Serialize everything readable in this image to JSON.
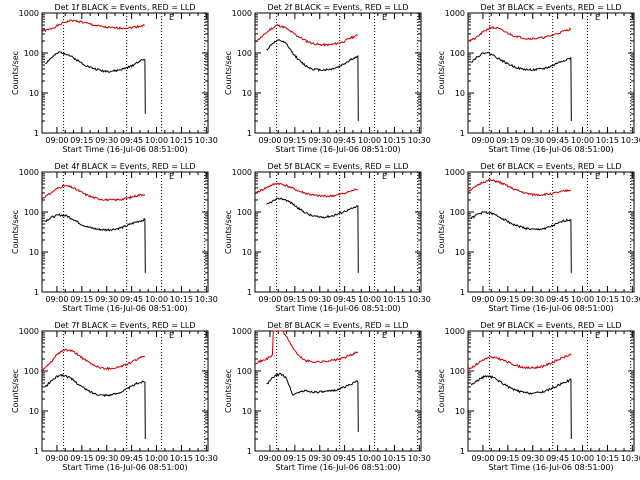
{
  "chart_data": [
    {
      "type": "line",
      "title": "Det 1f BLACK = Events, RED = LLD",
      "xlabel": "Start Time (16-Jul-06 08:51:00)",
      "ylabel": "Counts/sec",
      "xticks": [
        "09:00",
        "09:15",
        "09:30",
        "09:45",
        "10:00",
        "10:15",
        "10:30"
      ],
      "yticks": [
        "1",
        "10",
        "100",
        "1000"
      ],
      "ylim": [
        1,
        1000
      ],
      "yscale": "log",
      "marker": "E",
      "series": [
        {
          "name": "LLD",
          "color": "#cc0000",
          "t0": 0,
          "t1": 62,
          "level": [
            350,
            390,
            470,
            580,
            650,
            620,
            560,
            500,
            460,
            430,
            420,
            420,
            430,
            460,
            500
          ]
        },
        {
          "name": "Events",
          "color": "#000000",
          "t0": 2,
          "t1": 62,
          "level": [
            55,
            80,
            105,
            95,
            75,
            58,
            46,
            40,
            36,
            35,
            36,
            40,
            46,
            60,
            70
          ],
          "drop": 3
        }
      ],
      "dotted_x": [
        13,
        51,
        72,
        98
      ]
    },
    {
      "type": "line",
      "title": "Det 2f BLACK = Events, RED = LLD",
      "xlabel": "Start Time (16-Jul-06 08:51:00)",
      "ylabel": "Counts/sec",
      "xticks": [
        "09:00",
        "09:15",
        "09:30",
        "09:45",
        "10:00",
        "10:15",
        "10:30"
      ],
      "yticks": [
        "1",
        "10",
        "100",
        "1000"
      ],
      "ylim": [
        1,
        1000
      ],
      "yscale": "log",
      "marker": "E",
      "series": [
        {
          "name": "LLD",
          "color": "#cc0000",
          "t0": 0,
          "t1": 62,
          "level": [
            190,
            260,
            380,
            500,
            440,
            330,
            250,
            200,
            170,
            160,
            160,
            170,
            190,
            240,
            280
          ]
        },
        {
          "name": "Events",
          "color": "#000000",
          "t0": 7,
          "t1": 62,
          "level": [
            120,
            180,
            210,
            170,
            100,
            65,
            48,
            40,
            38,
            38,
            40,
            45,
            55,
            70,
            80
          ],
          "drop": 2
        }
      ],
      "dotted_x": [
        13,
        51,
        72,
        98
      ]
    },
    {
      "type": "line",
      "title": "Det 3f BLACK = Events, RED = LLD",
      "xlabel": "Start Time (16-Jul-06 08:51:00)",
      "ylabel": "Counts/sec",
      "xticks": [
        "09:00",
        "09:15",
        "09:30",
        "09:45",
        "10:00",
        "10:15",
        "10:30"
      ],
      "yticks": [
        "1",
        "10",
        "100",
        "1000"
      ],
      "ylim": [
        1,
        1000
      ],
      "yscale": "log",
      "marker": "E",
      "series": [
        {
          "name": "LLD",
          "color": "#cc0000",
          "t0": 0,
          "t1": 62,
          "level": [
            200,
            230,
            330,
            430,
            420,
            340,
            280,
            250,
            230,
            230,
            240,
            260,
            300,
            350,
            400
          ]
        },
        {
          "name": "Events",
          "color": "#000000",
          "t0": 2,
          "t1": 62,
          "level": [
            60,
            85,
            105,
            90,
            70,
            55,
            46,
            40,
            38,
            38,
            40,
            45,
            55,
            65,
            75
          ],
          "drop": 2
        }
      ],
      "dotted_x": [
        13,
        51,
        72,
        98
      ]
    },
    {
      "type": "line",
      "title": "Det 4f BLACK = Events, RED = LLD",
      "xlabel": "Start Time (16-Jul-06 08:51:00)",
      "ylabel": "Counts/sec",
      "xticks": [
        "09:00",
        "09:15",
        "09:30",
        "09:45",
        "10:00",
        "10:15",
        "10:30"
      ],
      "yticks": [
        "1",
        "10",
        "100",
        "1000"
      ],
      "ylim": [
        1,
        1000
      ],
      "yscale": "log",
      "marker": "E",
      "series": [
        {
          "name": "LLD",
          "color": "#cc0000",
          "t0": 0,
          "t1": 62,
          "level": [
            220,
            280,
            380,
            460,
            420,
            340,
            270,
            230,
            210,
            200,
            200,
            210,
            230,
            260,
            280
          ]
        },
        {
          "name": "Events",
          "color": "#000000",
          "t0": 2,
          "t1": 62,
          "level": [
            60,
            75,
            85,
            80,
            65,
            50,
            42,
            38,
            36,
            36,
            38,
            42,
            50,
            58,
            65
          ],
          "drop": 3
        }
      ],
      "dotted_x": [
        13,
        51,
        72,
        98
      ]
    },
    {
      "type": "line",
      "title": "Det 5f BLACK = Events, RED = LLD",
      "xlabel": "Start Time (16-Jul-06 08:51:00)",
      "ylabel": "Counts/sec",
      "xticks": [
        "09:00",
        "09:15",
        "09:30",
        "09:45",
        "10:00",
        "10:15",
        "10:30"
      ],
      "yticks": [
        "1",
        "10",
        "100",
        "1000"
      ],
      "ylim": [
        1,
        1000
      ],
      "yscale": "log",
      "marker": "E",
      "series": [
        {
          "name": "LLD",
          "color": "#cc0000",
          "t0": 0,
          "t1": 62,
          "level": [
            300,
            360,
            450,
            520,
            480,
            400,
            330,
            290,
            260,
            250,
            250,
            260,
            290,
            330,
            380
          ]
        },
        {
          "name": "Events",
          "color": "#000000",
          "t0": 7,
          "t1": 62,
          "level": [
            150,
            190,
            220,
            200,
            160,
            120,
            95,
            80,
            75,
            75,
            80,
            90,
            105,
            120,
            140
          ],
          "drop": 3
        }
      ],
      "dotted_x": [
        13,
        51,
        72,
        98
      ]
    },
    {
      "type": "line",
      "title": "Det 6f BLACK = Events, RED = LLD",
      "xlabel": "Start Time (16-Jul-06 08:51:00)",
      "ylabel": "Counts/sec",
      "xticks": [
        "09:00",
        "09:15",
        "09:30",
        "09:45",
        "10:00",
        "10:15",
        "10:30"
      ],
      "yticks": [
        "1",
        "10",
        "100",
        "1000"
      ],
      "ylim": [
        1,
        1000
      ],
      "yscale": "log",
      "marker": "E",
      "series": [
        {
          "name": "LLD",
          "color": "#cc0000",
          "t0": 0,
          "t1": 62,
          "level": [
            330,
            420,
            560,
            620,
            580,
            480,
            390,
            330,
            290,
            270,
            270,
            280,
            300,
            330,
            360
          ]
        },
        {
          "name": "Events",
          "color": "#000000",
          "t0": 2,
          "t1": 62,
          "level": [
            70,
            90,
            100,
            90,
            75,
            60,
            48,
            42,
            38,
            36,
            38,
            42,
            50,
            60,
            65
          ],
          "drop": 3
        }
      ],
      "dotted_x": [
        13,
        51,
        72,
        98
      ]
    },
    {
      "type": "line",
      "title": "Det 7f BLACK = Events, RED = LLD",
      "xlabel": "Start Time (16-Jul-06 08:51:00)",
      "ylabel": "Counts/sec",
      "xticks": [
        "09:00",
        "09:15",
        "09:30",
        "09:45",
        "10:00",
        "10:15",
        "10:30"
      ],
      "yticks": [
        "1",
        "10",
        "100",
        "1000"
      ],
      "ylim": [
        1,
        1000
      ],
      "yscale": "log",
      "marker": "E",
      "series": [
        {
          "name": "LLD",
          "color": "#cc0000",
          "t0": 0,
          "t1": 62,
          "level": [
            100,
            150,
            250,
            340,
            320,
            250,
            180,
            140,
            120,
            115,
            120,
            135,
            160,
            200,
            240
          ]
        },
        {
          "name": "Events",
          "color": "#000000",
          "t0": 2,
          "t1": 62,
          "level": [
            40,
            60,
            80,
            75,
            58,
            42,
            32,
            27,
            25,
            25,
            27,
            32,
            40,
            50,
            55
          ],
          "drop": 2
        }
      ],
      "dotted_x": [
        13,
        51,
        72,
        98
      ]
    },
    {
      "type": "line",
      "title": "Det 8f BLACK = Events, RED = LLD",
      "xlabel": "Start Time (16-Jul-06 08:51:00)",
      "ylabel": "Counts/sec",
      "xticks": [
        "09:00",
        "09:15",
        "09:30",
        "09:45",
        "10:00",
        "10:15",
        "10:30"
      ],
      "yticks": [
        "1",
        "10",
        "100",
        "1000"
      ],
      "ylim": [
        1,
        1000
      ],
      "yscale": "log",
      "marker": "E",
      "series": [
        {
          "name": "LLD",
          "color": "#cc0000",
          "t0": 0,
          "t1": 62,
          "level": [
            160,
            180,
            220,
            300,
            900,
            420,
            230,
            180,
            170,
            170,
            180,
            190,
            210,
            250,
            300
          ],
          "spike": [
            11,
            17
          ]
        },
        {
          "name": "Events",
          "color": "#000000",
          "t0": 7,
          "t1": 62,
          "level": [
            45,
            70,
            85,
            70,
            25,
            30,
            32,
            30,
            30,
            30,
            32,
            35,
            40,
            48,
            55
          ],
          "drop": 3
        }
      ],
      "dotted_x": [
        13,
        51,
        72,
        98
      ]
    },
    {
      "type": "line",
      "title": "Det 9f BLACK = Events, RED = LLD",
      "xlabel": "Start Time (16-Jul-06 08:51:00)",
      "ylabel": "Counts/sec",
      "xticks": [
        "09:00",
        "09:15",
        "09:30",
        "09:45",
        "10:00",
        "10:15",
        "10:30"
      ],
      "yticks": [
        "1",
        "10",
        "100",
        "1000"
      ],
      "ylim": [
        1,
        1000
      ],
      "yscale": "log",
      "marker": "E",
      "series": [
        {
          "name": "LLD",
          "color": "#cc0000",
          "t0": 0,
          "t1": 62,
          "level": [
            110,
            140,
            190,
            220,
            210,
            180,
            150,
            130,
            120,
            120,
            130,
            150,
            180,
            220,
            260
          ]
        },
        {
          "name": "Events",
          "color": "#000000",
          "t0": 2,
          "t1": 62,
          "level": [
            45,
            60,
            75,
            70,
            55,
            42,
            34,
            30,
            28,
            28,
            30,
            35,
            42,
            52,
            60
          ],
          "drop": 2
        }
      ],
      "dotted_x": [
        13,
        51,
        72,
        98
      ]
    }
  ]
}
